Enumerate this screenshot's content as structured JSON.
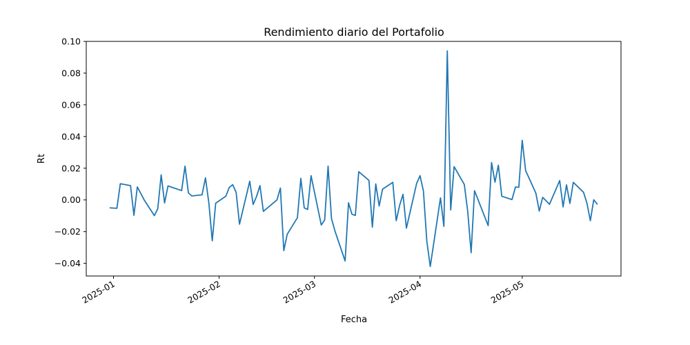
{
  "chart_data": {
    "type": "line",
    "title": "Rendimiento diario del Portafolio",
    "xlabel": "Fecha",
    "ylabel": "Rt",
    "ylim": [
      -0.048,
      0.1
    ],
    "xlim": [
      "2024-12-24",
      "2025-05-30"
    ],
    "yticks": [
      {
        "value": -0.04,
        "label": "−0.04"
      },
      {
        "value": -0.02,
        "label": "−0.02"
      },
      {
        "value": 0.0,
        "label": "0.00"
      },
      {
        "value": 0.02,
        "label": "0.02"
      },
      {
        "value": 0.04,
        "label": "0.04"
      },
      {
        "value": 0.06,
        "label": "0.06"
      },
      {
        "value": 0.08,
        "label": "0.08"
      },
      {
        "value": 0.1,
        "label": "0.10"
      }
    ],
    "xticks": [
      {
        "value": "2025-01-01",
        "label": "2025-01"
      },
      {
        "value": "2025-02-01",
        "label": "2025-02"
      },
      {
        "value": "2025-03-01",
        "label": "2025-03"
      },
      {
        "value": "2025-04-01",
        "label": "2025-04"
      },
      {
        "value": "2025-05-01",
        "label": "2025-05"
      }
    ],
    "grid": false,
    "line_color": "#1f77b4",
    "series": [
      {
        "values": [
          {
            "x": "2024-12-31",
            "y": -0.005
          },
          {
            "x": "2025-01-02",
            "y": -0.0053
          },
          {
            "x": "2025-01-03",
            "y": 0.0102
          },
          {
            "x": "2025-01-06",
            "y": 0.009
          },
          {
            "x": "2025-01-07",
            "y": -0.0097
          },
          {
            "x": "2025-01-08",
            "y": 0.0082
          },
          {
            "x": "2025-01-10",
            "y": 0.0
          },
          {
            "x": "2025-01-13",
            "y": -0.0099
          },
          {
            "x": "2025-01-14",
            "y": -0.0055
          },
          {
            "x": "2025-01-15",
            "y": 0.0158
          },
          {
            "x": "2025-01-16",
            "y": -0.0019
          },
          {
            "x": "2025-01-17",
            "y": 0.0088
          },
          {
            "x": "2025-01-21",
            "y": 0.0059
          },
          {
            "x": "2025-01-22",
            "y": 0.0213
          },
          {
            "x": "2025-01-23",
            "y": 0.0044
          },
          {
            "x": "2025-01-24",
            "y": 0.0025
          },
          {
            "x": "2025-01-27",
            "y": 0.0032
          },
          {
            "x": "2025-01-28",
            "y": 0.0139
          },
          {
            "x": "2025-01-29",
            "y": -0.002
          },
          {
            "x": "2025-01-30",
            "y": -0.0258
          },
          {
            "x": "2025-01-31",
            "y": -0.0021
          },
          {
            "x": "2025-02-03",
            "y": 0.0024
          },
          {
            "x": "2025-02-04",
            "y": 0.0079
          },
          {
            "x": "2025-02-05",
            "y": 0.0096
          },
          {
            "x": "2025-02-06",
            "y": 0.0048
          },
          {
            "x": "2025-02-07",
            "y": -0.0153
          },
          {
            "x": "2025-02-10",
            "y": 0.0118
          },
          {
            "x": "2025-02-11",
            "y": -0.0029
          },
          {
            "x": "2025-02-12",
            "y": 0.0022
          },
          {
            "x": "2025-02-13",
            "y": 0.009
          },
          {
            "x": "2025-02-14",
            "y": -0.0072
          },
          {
            "x": "2025-02-18",
            "y": 0.0
          },
          {
            "x": "2025-02-19",
            "y": 0.0075
          },
          {
            "x": "2025-02-20",
            "y": -0.032
          },
          {
            "x": "2025-02-21",
            "y": -0.0217
          },
          {
            "x": "2025-02-24",
            "y": -0.0112
          },
          {
            "x": "2025-02-25",
            "y": 0.0136
          },
          {
            "x": "2025-02-26",
            "y": -0.005
          },
          {
            "x": "2025-02-27",
            "y": -0.006
          },
          {
            "x": "2025-02-28",
            "y": 0.0153
          },
          {
            "x": "2025-03-03",
            "y": -0.0158
          },
          {
            "x": "2025-03-04",
            "y": -0.0127
          },
          {
            "x": "2025-03-05",
            "y": 0.0213
          },
          {
            "x": "2025-03-06",
            "y": -0.0117
          },
          {
            "x": "2025-03-07",
            "y": -0.0195
          },
          {
            "x": "2025-03-10",
            "y": -0.0385
          },
          {
            "x": "2025-03-11",
            "y": -0.0018
          },
          {
            "x": "2025-03-12",
            "y": -0.009
          },
          {
            "x": "2025-03-13",
            "y": -0.0098
          },
          {
            "x": "2025-03-14",
            "y": 0.0178
          },
          {
            "x": "2025-03-17",
            "y": 0.0123
          },
          {
            "x": "2025-03-18",
            "y": -0.0172
          },
          {
            "x": "2025-03-19",
            "y": 0.0101
          },
          {
            "x": "2025-03-20",
            "y": -0.0038
          },
          {
            "x": "2025-03-21",
            "y": 0.0068
          },
          {
            "x": "2025-03-24",
            "y": 0.0111
          },
          {
            "x": "2025-03-25",
            "y": -0.0131
          },
          {
            "x": "2025-03-26",
            "y": -0.0035
          },
          {
            "x": "2025-03-27",
            "y": 0.0035
          },
          {
            "x": "2025-03-28",
            "y": -0.0178
          },
          {
            "x": "2025-03-31",
            "y": 0.0104
          },
          {
            "x": "2025-04-01",
            "y": 0.0153
          },
          {
            "x": "2025-04-02",
            "y": 0.0055
          },
          {
            "x": "2025-04-03",
            "y": -0.0263
          },
          {
            "x": "2025-04-04",
            "y": -0.042
          },
          {
            "x": "2025-04-07",
            "y": 0.0013
          },
          {
            "x": "2025-04-08",
            "y": -0.0167
          },
          {
            "x": "2025-04-09",
            "y": 0.094
          },
          {
            "x": "2025-04-10",
            "y": -0.0063
          },
          {
            "x": "2025-04-11",
            "y": 0.021
          },
          {
            "x": "2025-04-14",
            "y": 0.0097
          },
          {
            "x": "2025-04-15",
            "y": -0.0074
          },
          {
            "x": "2025-04-16",
            "y": -0.0333
          },
          {
            "x": "2025-04-17",
            "y": 0.0058
          },
          {
            "x": "2025-04-21",
            "y": -0.0162
          },
          {
            "x": "2025-04-22",
            "y": 0.0236
          },
          {
            "x": "2025-04-23",
            "y": 0.0112
          },
          {
            "x": "2025-04-24",
            "y": 0.0219
          },
          {
            "x": "2025-04-25",
            "y": 0.0023
          },
          {
            "x": "2025-04-28",
            "y": 0.0002
          },
          {
            "x": "2025-04-29",
            "y": 0.0081
          },
          {
            "x": "2025-04-30",
            "y": 0.008
          },
          {
            "x": "2025-05-01",
            "y": 0.0376
          },
          {
            "x": "2025-05-02",
            "y": 0.0185
          },
          {
            "x": "2025-05-05",
            "y": 0.0043
          },
          {
            "x": "2025-05-06",
            "y": -0.007
          },
          {
            "x": "2025-05-07",
            "y": 0.0016
          },
          {
            "x": "2025-05-08",
            "y": -0.0005
          },
          {
            "x": "2025-05-09",
            "y": -0.0028
          },
          {
            "x": "2025-05-12",
            "y": 0.0122
          },
          {
            "x": "2025-05-13",
            "y": -0.0044
          },
          {
            "x": "2025-05-14",
            "y": 0.0095
          },
          {
            "x": "2025-05-15",
            "y": -0.0022
          },
          {
            "x": "2025-05-16",
            "y": 0.0111
          },
          {
            "x": "2025-05-19",
            "y": 0.0048
          },
          {
            "x": "2025-05-20",
            "y": -0.0021
          },
          {
            "x": "2025-05-21",
            "y": -0.0131
          },
          {
            "x": "2025-05-22",
            "y": 0.0001
          },
          {
            "x": "2025-05-23",
            "y": -0.0026
          }
        ]
      }
    ]
  }
}
